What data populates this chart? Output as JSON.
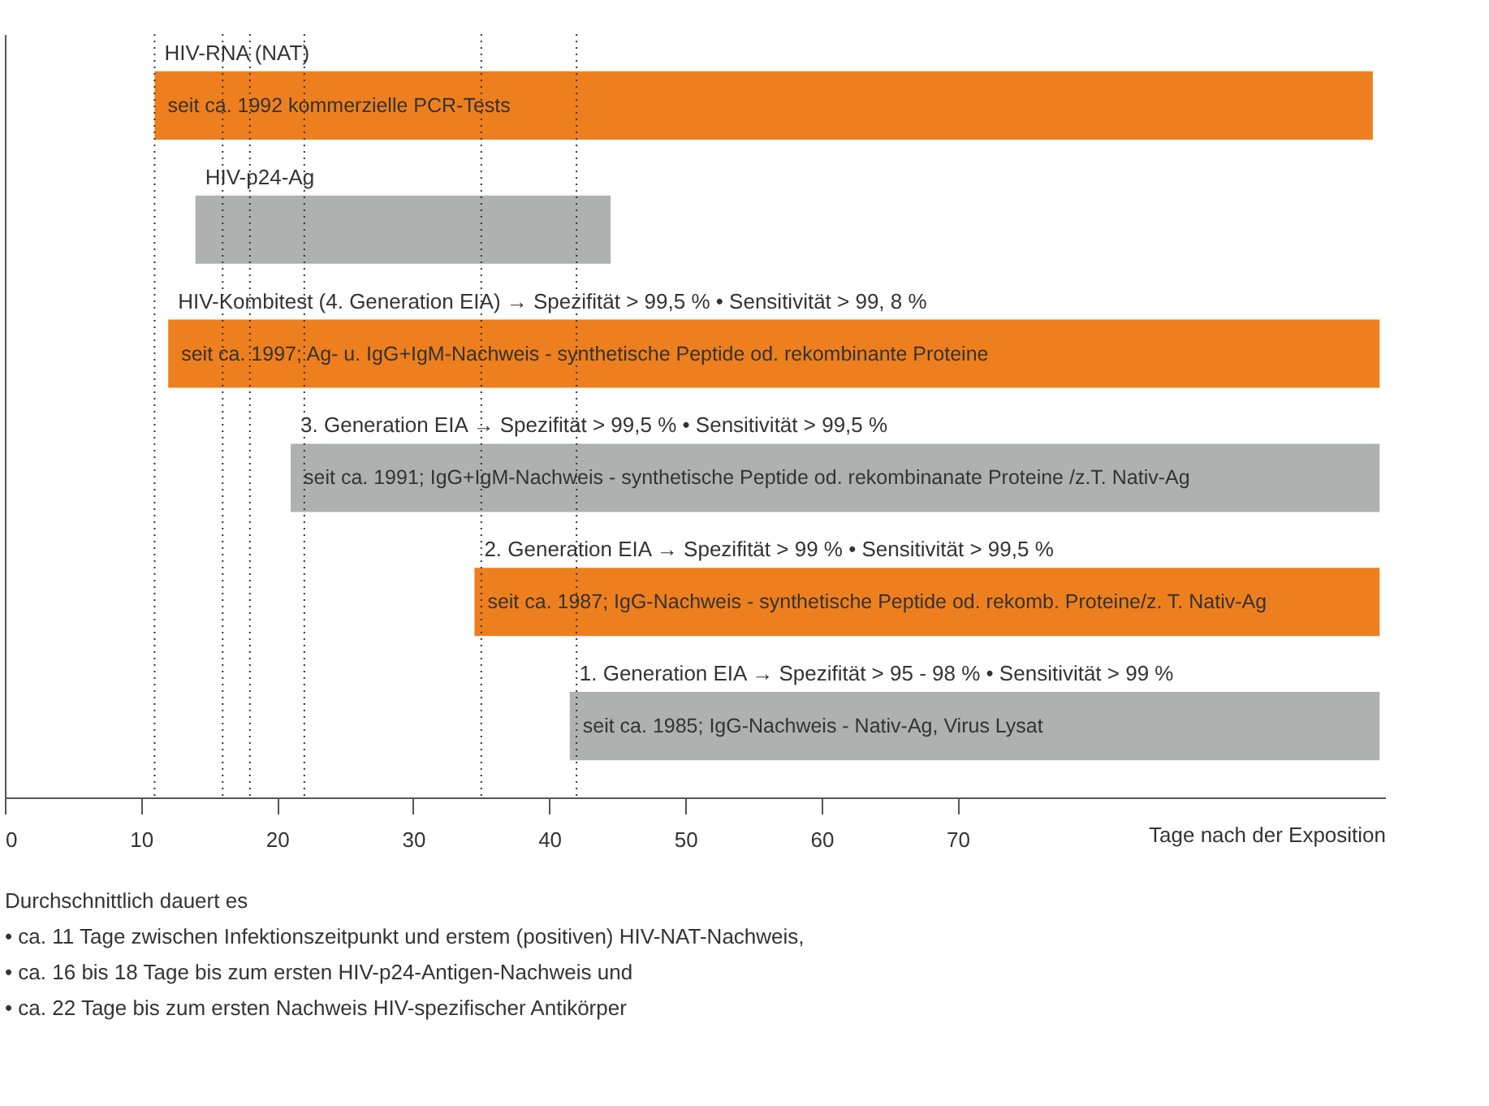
{
  "chart_data": {
    "type": "bar",
    "orientation": "horizontal",
    "categories": [
      "HIV-RNA (NAT)",
      "HIV-p24-Ag",
      "HIV-Kombitest (4. Generation EIA) → Spezifität > 99,5 % • Sensitivität > 99, 8 %",
      "3. Generation EIA → Spezifität > 99,5 % • Sensitivität > 99,5 %",
      "2. Generation EIA → Spezifität > 99 % • Sensitivität > 99,5 %",
      "1. Generation EIA → Spezifität > 95 - 98 % • Sensitivität > 99 %"
    ],
    "base": [
      11,
      14,
      12,
      21,
      34.5,
      41.5
    ],
    "values": [
      89.5,
      30.5,
      89,
      80,
      66.5,
      59.5
    ],
    "colors": [
      "#ee7f1e",
      "#aeb1b0",
      "#ee7f1e",
      "#aeb1b0",
      "#ee7f1e",
      "#aeb1b0"
    ],
    "xlim": [
      0,
      101.4
    ],
    "xticks": [
      0,
      10,
      20,
      30,
      40,
      50,
      60,
      70
    ],
    "xlabel": "Tage nach der Exposition",
    "ref_lines": [
      {
        "axis": "x",
        "value": 11,
        "line_style": "dotted",
        "color": "#333333"
      },
      {
        "axis": "x",
        "value": 16,
        "line_style": "dotted",
        "color": "#333333"
      },
      {
        "axis": "x",
        "value": 18,
        "line_style": "dotted",
        "color": "#333333"
      },
      {
        "axis": "x",
        "value": 22,
        "line_style": "dotted",
        "color": "#333333"
      },
      {
        "axis": "x",
        "value": 35,
        "line_style": "dotted",
        "color": "#333333"
      },
      {
        "axis": "x",
        "value": 42,
        "line_style": "dotted",
        "color": "#333333"
      }
    ],
    "annotations": [
      {
        "text": "seit ca. 1992 kommerzielle PCR-Tests",
        "x": 11,
        "y": "HIV-RNA (NAT)"
      },
      {
        "text": "seit ca. 1997; Ag- u. IgG+IgM-Nachweis - synthetische Peptide od. rekombinante Proteine",
        "x": 12,
        "y": "HIV-Kombitest (4. Generation EIA) → Spezifität > 99,5 % • Sensitivität > 99, 8 %"
      },
      {
        "text": "seit ca. 1991; IgG+IgM-Nachweis - synthetische Peptide od. rekombinanate Proteine /z.T. Nativ-Ag",
        "x": 21,
        "y": "3. Generation EIA → Spezifität > 99,5 % • Sensitivität > 99,5 %"
      },
      {
        "text": "seit ca. 1987; IgG-Nachweis - synthetische Peptide od. rekomb. Proteine/z. T. Nativ-Ag",
        "x": 34.5,
        "y": "2. Generation EIA → Spezifität > 99 % • Sensitivität > 99,5 %"
      },
      {
        "text": "seit ca. 1985; IgG-Nachweis - Nativ-Ag, Virus Lysat",
        "x": 41.5,
        "y": "1. Generation EIA → Spezifität > 95 - 98 % • Sensitivität > 99 %"
      },
      "Durchschnittlich dauert es",
      "•   ca. 11 Tage zwischen Infektionszeitpunkt und erstem (positiven) HIV-NAT-Nachweis,",
      "•   ca. 16 bis 18 Tage bis zum ersten HIV-p24-Antigen-Nachweis und",
      "•   ca. 22 Tage bis zum ersten Nachweis HIV-spezifischer Antikörper"
    ],
    "grid": false
  }
}
